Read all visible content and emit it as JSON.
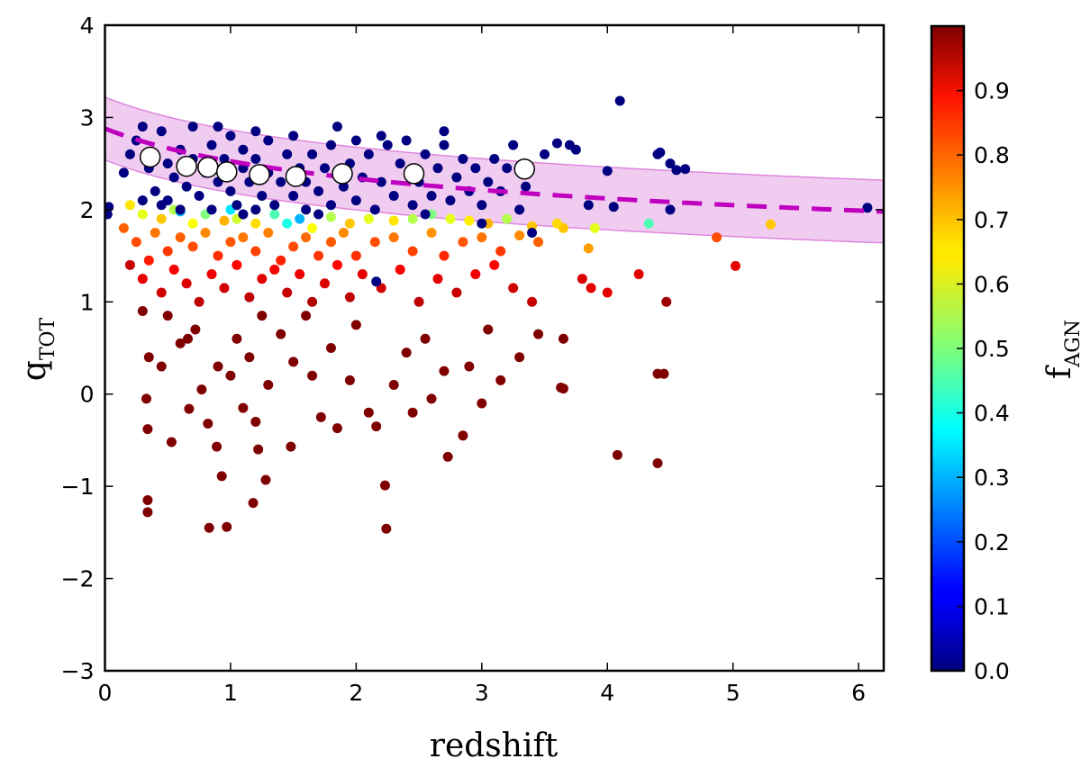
{
  "chart_data": {
    "type": "scatter",
    "xlabel": "redshift",
    "ylabel": "q",
    "ylabel_sub": "TOT",
    "colorbar_label": "f",
    "colorbar_label_sub": "AGN",
    "xlim": [
      0,
      6.2
    ],
    "ylim": [
      -3,
      4
    ],
    "xticks": [
      0,
      1,
      2,
      3,
      4,
      5,
      6
    ],
    "xtick_labels": [
      "0",
      "1",
      "2",
      "3",
      "4",
      "5",
      "6"
    ],
    "yticks": [
      -3,
      -2,
      -1,
      0,
      1,
      2,
      3,
      4
    ],
    "ytick_labels": [
      "−3",
      "−2",
      "−1",
      "0",
      "1",
      "2",
      "3",
      "4"
    ],
    "colorbar_range": [
      0,
      1
    ],
    "colorbar_ticks": [
      0,
      0.1,
      0.2,
      0.3,
      0.4,
      0.5,
      0.6,
      0.7,
      0.8,
      0.9
    ],
    "colorbar_tick_labels": [
      "0.0",
      "0.1",
      "0.2",
      "0.3",
      "0.4",
      "0.5",
      "0.6",
      "0.7",
      "0.8",
      "0.9"
    ],
    "colormap": "jet",
    "fit": {
      "q0": 2.88,
      "exponent": -0.19,
      "form": "q0*(1+z)^exponent",
      "band_halfwidth": 0.34,
      "line_color": "#bf00bf",
      "band_color": "#e9b0e9"
    },
    "binned_medians": [
      [
        0.36,
        2.57
      ],
      [
        0.65,
        2.47
      ],
      [
        0.82,
        2.46
      ],
      [
        0.97,
        2.41
      ],
      [
        1.23,
        2.38
      ],
      [
        1.52,
        2.36
      ],
      [
        1.89,
        2.39
      ],
      [
        2.46,
        2.39
      ],
      [
        3.34,
        2.44
      ]
    ],
    "points_columns": [
      "redshift",
      "q_TOT",
      "f_AGN"
    ],
    "points": [
      [
        0.2,
        2.6,
        0
      ],
      [
        0.25,
        2.75,
        0
      ],
      [
        0.3,
        2.9,
        0
      ],
      [
        0.35,
        2.45,
        0
      ],
      [
        0.4,
        2.2,
        0
      ],
      [
        0.45,
        2.85,
        0
      ],
      [
        0.5,
        2.5,
        0
      ],
      [
        0.5,
        2.1,
        0
      ],
      [
        0.55,
        2.35,
        0
      ],
      [
        0.6,
        2.65,
        0
      ],
      [
        0.6,
        2.0,
        0
      ],
      [
        0.65,
        2.25,
        0
      ],
      [
        0.7,
        2.55,
        0
      ],
      [
        0.7,
        2.9,
        0
      ],
      [
        0.75,
        2.15,
        0
      ],
      [
        0.8,
        2.4,
        0
      ],
      [
        0.85,
        2.7,
        0
      ],
      [
        0.85,
        2.0,
        0
      ],
      [
        0.9,
        2.3,
        0
      ],
      [
        0.95,
        2.55,
        0
      ],
      [
        1.0,
        2.2,
        0
      ],
      [
        1.0,
        2.8,
        0
      ],
      [
        1.05,
        2.05,
        0
      ],
      [
        1.1,
        2.45,
        0
      ],
      [
        1.1,
        2.65,
        0
      ],
      [
        1.15,
        2.3,
        0
      ],
      [
        1.2,
        2.0,
        0
      ],
      [
        1.2,
        2.55,
        0
      ],
      [
        1.25,
        2.15,
        0
      ],
      [
        1.3,
        2.4,
        0
      ],
      [
        1.3,
        2.75,
        0
      ],
      [
        1.35,
        2.05,
        0
      ],
      [
        1.4,
        2.3,
        0
      ],
      [
        1.45,
        2.6,
        0
      ],
      [
        1.5,
        2.15,
        0
      ],
      [
        1.5,
        2.8,
        0
      ],
      [
        1.55,
        2.45,
        0
      ],
      [
        1.6,
        2.0,
        0
      ],
      [
        1.6,
        2.3,
        0
      ],
      [
        1.65,
        2.6,
        0
      ],
      [
        1.7,
        2.2,
        0
      ],
      [
        1.75,
        2.45,
        0
      ],
      [
        1.8,
        2.7,
        0
      ],
      [
        1.8,
        2.05,
        0
      ],
      [
        1.85,
        2.9,
        0
      ],
      [
        1.9,
        2.25,
        0
      ],
      [
        1.95,
        2.5,
        0
      ],
      [
        2.0,
        2.1,
        0
      ],
      [
        2.0,
        2.75,
        0
      ],
      [
        2.05,
        2.35,
        0
      ],
      [
        2.1,
        2.6,
        0
      ],
      [
        2.15,
        2.0,
        0
      ],
      [
        2.2,
        2.3,
        0
      ],
      [
        2.25,
        2.7,
        0
      ],
      [
        2.3,
        2.15,
        0
      ],
      [
        2.35,
        2.5,
        0
      ],
      [
        2.4,
        2.75,
        0
      ],
      [
        2.45,
        2.05,
        0
      ],
      [
        2.5,
        2.3,
        0
      ],
      [
        2.55,
        2.6,
        0
      ],
      [
        2.6,
        2.15,
        0
      ],
      [
        2.65,
        2.45,
        0
      ],
      [
        2.7,
        2.7,
        0
      ],
      [
        2.75,
        2.1,
        0
      ],
      [
        2.8,
        2.35,
        0
      ],
      [
        2.85,
        2.55,
        0
      ],
      [
        2.9,
        2.2,
        0
      ],
      [
        2.95,
        2.45,
        0
      ],
      [
        3.0,
        2.05,
        0
      ],
      [
        3.05,
        2.3,
        0
      ],
      [
        3.1,
        2.55,
        0
      ],
      [
        3.15,
        2.2,
        0
      ],
      [
        3.2,
        2.45,
        0
      ],
      [
        3.25,
        2.7,
        0
      ],
      [
        3.3,
        2.0,
        0
      ],
      [
        3.35,
        2.25,
        0
      ],
      [
        0.15,
        2.4,
        0
      ],
      [
        0.3,
        2.1,
        0
      ],
      [
        0.45,
        2.05,
        0
      ],
      [
        0.9,
        2.9,
        0
      ],
      [
        1.2,
        2.85,
        0
      ],
      [
        2.2,
        2.8,
        0
      ],
      [
        2.7,
        2.85,
        0
      ],
      [
        1.1,
        1.95,
        0
      ],
      [
        1.7,
        1.95,
        0
      ],
      [
        2.55,
        1.95,
        0
      ],
      [
        3.0,
        1.85,
        0
      ],
      [
        2.16,
        1.22,
        0
      ],
      [
        3.4,
        1.75,
        0
      ],
      [
        4.1,
        3.18,
        0
      ],
      [
        3.5,
        2.6,
        0
      ],
      [
        3.6,
        2.72,
        0
      ],
      [
        3.7,
        2.7,
        0
      ],
      [
        3.75,
        2.65,
        0
      ],
      [
        4.0,
        2.42,
        0
      ],
      [
        4.05,
        2.03,
        0
      ],
      [
        3.85,
        2.05,
        0
      ],
      [
        4.4,
        2.6,
        0
      ],
      [
        4.42,
        2.62,
        0
      ],
      [
        4.5,
        2.5,
        0
      ],
      [
        4.55,
        2.43,
        0
      ],
      [
        4.62,
        2.44,
        0
      ],
      [
        4.5,
        2.0,
        0
      ],
      [
        6.07,
        2.02,
        0
      ],
      [
        0.03,
        2.03,
        0
      ],
      [
        0.02,
        1.95,
        0
      ],
      [
        0.2,
        2.05,
        0.65
      ],
      [
        0.3,
        1.95,
        0.6
      ],
      [
        0.45,
        1.9,
        0.68
      ],
      [
        0.55,
        2.0,
        0.55
      ],
      [
        0.7,
        1.85,
        0.62
      ],
      [
        0.8,
        1.95,
        0.5
      ],
      [
        0.95,
        1.88,
        0.7
      ],
      [
        1.05,
        1.9,
        0.58
      ],
      [
        1.2,
        1.85,
        0.66
      ],
      [
        1.35,
        1.95,
        0.45
      ],
      [
        1.45,
        1.85,
        0.4
      ],
      [
        1.55,
        1.9,
        0.3
      ],
      [
        1.65,
        1.8,
        0.62
      ],
      [
        1.8,
        1.92,
        0.55
      ],
      [
        1.95,
        1.85,
        0.68
      ],
      [
        2.1,
        1.9,
        0.6
      ],
      [
        2.3,
        1.88,
        0.65
      ],
      [
        2.45,
        1.9,
        0.55
      ],
      [
        2.6,
        1.95,
        0.5
      ],
      [
        2.75,
        1.9,
        0.6
      ],
      [
        2.9,
        1.88,
        0.64
      ],
      [
        3.05,
        1.85,
        0.7
      ],
      [
        3.2,
        1.9,
        0.55
      ],
      [
        3.4,
        1.82,
        0.68
      ],
      [
        3.6,
        1.85,
        0.66
      ],
      [
        3.65,
        1.8,
        0.68
      ],
      [
        3.9,
        1.8,
        0.6
      ],
      [
        4.33,
        1.85,
        0.45
      ],
      [
        5.3,
        1.84,
        0.68
      ],
      [
        1.0,
        2.0,
        0.35
      ],
      [
        0.6,
        1.98,
        0.3
      ],
      [
        0.15,
        1.8,
        0.78
      ],
      [
        0.25,
        1.65,
        0.8
      ],
      [
        0.4,
        1.75,
        0.76
      ],
      [
        0.5,
        1.55,
        0.82
      ],
      [
        0.6,
        1.7,
        0.78
      ],
      [
        0.7,
        1.6,
        0.8
      ],
      [
        0.8,
        1.75,
        0.74
      ],
      [
        0.9,
        1.5,
        0.83
      ],
      [
        1.0,
        1.65,
        0.79
      ],
      [
        1.1,
        1.7,
        0.76
      ],
      [
        1.2,
        1.55,
        0.81
      ],
      [
        1.3,
        1.75,
        0.75
      ],
      [
        1.4,
        1.45,
        0.84
      ],
      [
        1.5,
        1.6,
        0.8
      ],
      [
        1.6,
        1.7,
        0.77
      ],
      [
        1.7,
        1.5,
        0.82
      ],
      [
        1.8,
        1.65,
        0.79
      ],
      [
        1.9,
        1.75,
        0.74
      ],
      [
        2.0,
        1.5,
        0.83
      ],
      [
        2.15,
        1.65,
        0.8
      ],
      [
        2.3,
        1.7,
        0.76
      ],
      [
        2.45,
        1.55,
        0.81
      ],
      [
        2.6,
        1.75,
        0.73
      ],
      [
        2.7,
        1.5,
        0.84
      ],
      [
        2.85,
        1.65,
        0.79
      ],
      [
        3.0,
        1.7,
        0.76
      ],
      [
        3.15,
        1.55,
        0.82
      ],
      [
        3.3,
        1.72,
        0.74
      ],
      [
        3.45,
        1.65,
        0.78
      ],
      [
        3.85,
        1.58,
        0.72
      ],
      [
        4.87,
        1.7,
        0.8
      ],
      [
        0.35,
        1.45,
        0.85
      ],
      [
        0.2,
        1.4,
        0.93
      ],
      [
        0.3,
        1.25,
        0.9
      ],
      [
        0.45,
        1.1,
        0.92
      ],
      [
        0.55,
        1.35,
        0.88
      ],
      [
        0.65,
        1.2,
        0.91
      ],
      [
        0.75,
        1.0,
        0.94
      ],
      [
        0.85,
        1.3,
        0.89
      ],
      [
        0.95,
        1.15,
        0.92
      ],
      [
        1.05,
        1.4,
        0.87
      ],
      [
        1.15,
        1.05,
        0.94
      ],
      [
        1.25,
        1.25,
        0.9
      ],
      [
        1.35,
        1.35,
        0.88
      ],
      [
        1.45,
        1.1,
        0.93
      ],
      [
        1.55,
        1.3,
        0.89
      ],
      [
        1.65,
        1.0,
        0.95
      ],
      [
        1.75,
        1.2,
        0.91
      ],
      [
        1.85,
        1.4,
        0.87
      ],
      [
        1.95,
        1.05,
        0.94
      ],
      [
        2.05,
        1.3,
        0.9
      ],
      [
        2.2,
        1.15,
        0.92
      ],
      [
        2.35,
        1.35,
        0.88
      ],
      [
        2.5,
        1.0,
        0.94
      ],
      [
        2.65,
        1.25,
        0.9
      ],
      [
        2.8,
        1.1,
        0.93
      ],
      [
        2.95,
        1.3,
        0.89
      ],
      [
        3.1,
        1.4,
        0.87
      ],
      [
        3.25,
        1.15,
        0.92
      ],
      [
        3.8,
        1.25,
        0.91
      ],
      [
        3.87,
        1.15,
        0.9
      ],
      [
        4.0,
        1.1,
        0.9
      ],
      [
        4.25,
        1.3,
        0.9
      ],
      [
        5.02,
        1.39,
        0.9
      ],
      [
        3.4,
        1.0,
        0.93
      ],
      [
        0.3,
        0.9,
        1
      ],
      [
        0.35,
        0.4,
        1
      ],
      [
        0.33,
        -0.05,
        1
      ],
      [
        0.34,
        -0.38,
        1
      ],
      [
        0.34,
        -1.15,
        1
      ],
      [
        0.34,
        -1.28,
        1
      ],
      [
        0.45,
        0.3,
        1
      ],
      [
        0.5,
        0.85,
        1
      ],
      [
        0.53,
        -0.52,
        1
      ],
      [
        0.6,
        0.55,
        1
      ],
      [
        0.66,
        0.6,
        1
      ],
      [
        0.67,
        -0.16,
        1
      ],
      [
        0.72,
        0.7,
        1
      ],
      [
        0.77,
        0.05,
        1
      ],
      [
        0.82,
        -0.32,
        1
      ],
      [
        0.83,
        -1.45,
        1
      ],
      [
        0.89,
        -0.57,
        1
      ],
      [
        0.9,
        0.3,
        1
      ],
      [
        0.93,
        -0.89,
        1
      ],
      [
        0.97,
        -1.44,
        1
      ],
      [
        1.0,
        0.2,
        1
      ],
      [
        1.05,
        0.6,
        1
      ],
      [
        1.1,
        -0.15,
        1
      ],
      [
        1.15,
        0.4,
        1
      ],
      [
        1.18,
        -1.18,
        1
      ],
      [
        1.2,
        -0.3,
        1
      ],
      [
        1.22,
        -0.6,
        1
      ],
      [
        1.25,
        0.85,
        1
      ],
      [
        1.28,
        -0.93,
        1
      ],
      [
        1.3,
        0.1,
        1
      ],
      [
        1.4,
        0.65,
        1
      ],
      [
        1.48,
        -0.57,
        1
      ],
      [
        1.5,
        0.35,
        1
      ],
      [
        1.6,
        0.85,
        1
      ],
      [
        1.65,
        0.2,
        1
      ],
      [
        1.72,
        -0.25,
        1
      ],
      [
        1.8,
        0.5,
        1
      ],
      [
        1.85,
        -0.37,
        1
      ],
      [
        1.95,
        0.15,
        1
      ],
      [
        2.0,
        0.75,
        1
      ],
      [
        2.1,
        -0.2,
        1
      ],
      [
        2.16,
        -0.35,
        1
      ],
      [
        2.23,
        -0.99,
        1
      ],
      [
        2.24,
        -1.46,
        1
      ],
      [
        2.3,
        0.1,
        1
      ],
      [
        2.4,
        0.45,
        1
      ],
      [
        2.45,
        -0.2,
        1
      ],
      [
        2.55,
        0.6,
        1
      ],
      [
        2.6,
        -0.05,
        1
      ],
      [
        2.7,
        0.25,
        1
      ],
      [
        2.73,
        -0.68,
        1
      ],
      [
        2.85,
        -0.45,
        1
      ],
      [
        2.9,
        0.3,
        1
      ],
      [
        3.0,
        -0.1,
        1
      ],
      [
        3.05,
        0.7,
        1
      ],
      [
        3.15,
        0.15,
        1
      ],
      [
        3.3,
        0.4,
        1
      ],
      [
        3.45,
        0.65,
        1
      ],
      [
        3.63,
        0.07,
        1
      ],
      [
        3.65,
        0.06,
        1
      ],
      [
        4.08,
        -0.66,
        1
      ],
      [
        4.4,
        -0.75,
        1
      ],
      [
        4.4,
        0.22,
        1
      ],
      [
        4.45,
        0.22,
        1
      ],
      [
        4.47,
        1.0,
        0.97
      ],
      [
        3.65,
        0.6,
        1
      ]
    ]
  }
}
